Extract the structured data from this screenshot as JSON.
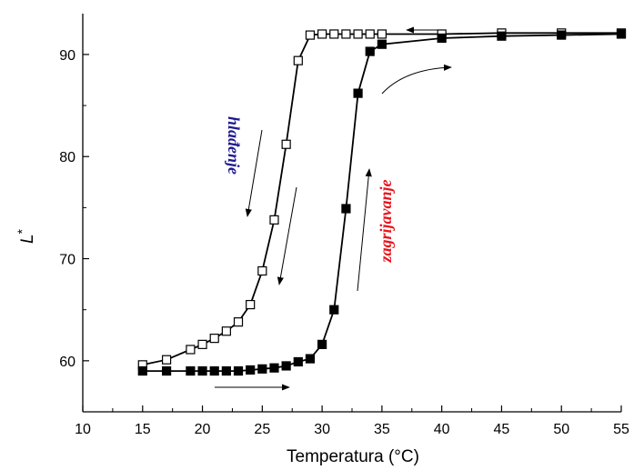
{
  "chart_data": {
    "type": "scatter",
    "title": "",
    "xlabel": "Temperatura (°C)",
    "ylabel": "L*",
    "ylabel_main": "L",
    "ylabel_sup": "*",
    "xlim": [
      10,
      55
    ],
    "ylim": [
      55,
      94
    ],
    "x_ticks": [
      10,
      15,
      20,
      25,
      30,
      35,
      40,
      45,
      50,
      55
    ],
    "y_ticks": [
      60,
      70,
      80,
      90
    ],
    "grid": false,
    "series": [
      {
        "marker": "open-square",
        "x": [
          15,
          17,
          19,
          20,
          21,
          22,
          23,
          24,
          25,
          26,
          27,
          28,
          29,
          30,
          31,
          32,
          33,
          34,
          35,
          40,
          45,
          50,
          55
        ],
        "y": [
          59.6,
          60.1,
          61.1,
          61.6,
          62.2,
          62.9,
          63.8,
          65.5,
          68.8,
          73.8,
          81.2,
          89.4,
          91.9,
          92.0,
          92.0,
          92.0,
          92.0,
          92.0,
          92.0,
          92.0,
          92.1,
          92.1,
          92.1
        ]
      },
      {
        "marker": "filled-square",
        "x": [
          15,
          17,
          19,
          20,
          21,
          22,
          23,
          24,
          25,
          26,
          27,
          28,
          29,
          30,
          31,
          32,
          33,
          34,
          35,
          40,
          45,
          50,
          55
        ],
        "y": [
          59.0,
          59.0,
          59.0,
          59.0,
          59.0,
          59.0,
          59.0,
          59.1,
          59.2,
          59.3,
          59.5,
          59.9,
          60.2,
          61.6,
          65.0,
          74.9,
          86.2,
          90.3,
          91.0,
          91.6,
          91.8,
          91.9,
          92.0
        ]
      }
    ],
    "annotations": {
      "cooling": {
        "text": "hlađenje",
        "color": "#1f1a8f"
      },
      "heating": {
        "text": "zagrijavanje",
        "color": "#e8141e"
      }
    }
  }
}
